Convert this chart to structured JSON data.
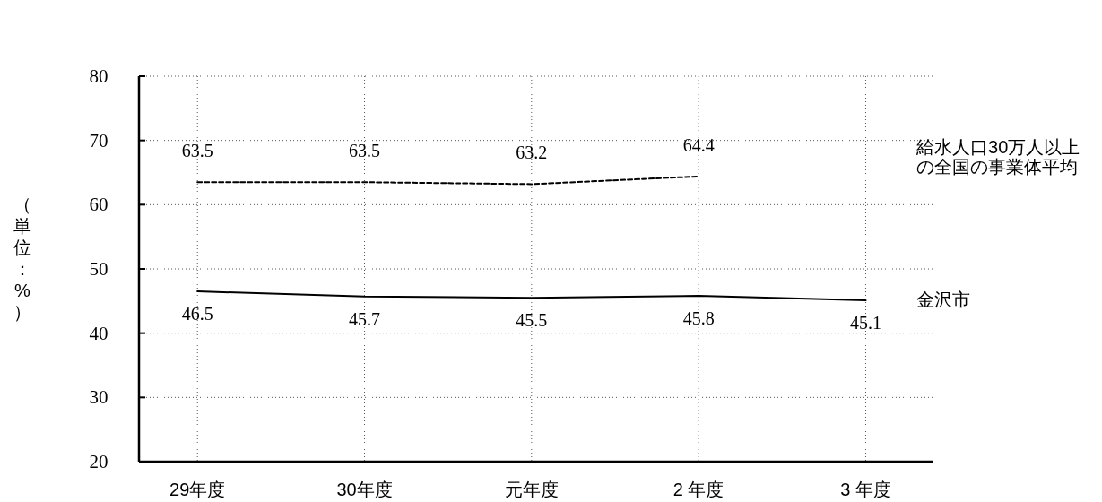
{
  "chart_data": {
    "type": "line",
    "ylabel": "（単位：%）",
    "categories": [
      "29年度",
      "30年度",
      "元年度",
      "2 年度",
      "3 年度"
    ],
    "series": [
      {
        "name": "給水人口30万人以上の全国の事業体平均",
        "color": "#000000",
        "line_style": "dashed",
        "values": [
          63.5,
          63.5,
          63.2,
          64.4,
          null
        ]
      },
      {
        "name": "金沢市",
        "color": "#000000",
        "line_style": "solid",
        "values": [
          46.5,
          45.7,
          45.5,
          45.8,
          45.1
        ]
      }
    ],
    "ylim": [
      20,
      80
    ],
    "yticks": [
      20,
      30,
      40,
      50,
      60,
      70,
      80
    ],
    "grid": true,
    "data_labels": true,
    "marker": "none"
  }
}
